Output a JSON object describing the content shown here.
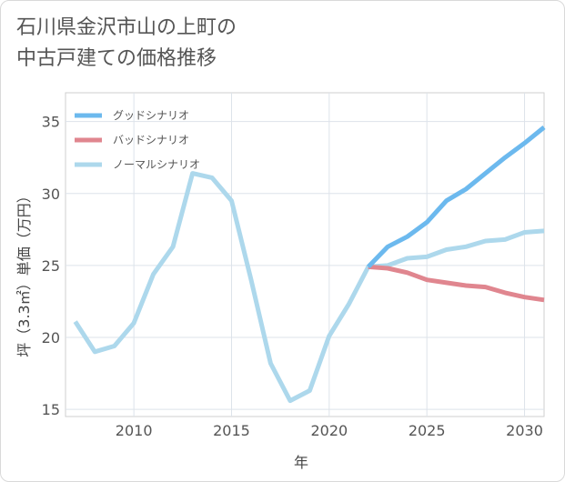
{
  "title": "石川県金沢市山の上町の\n中古戸建ての価格推移",
  "chart_data": {
    "type": "line",
    "xlabel": "年",
    "ylabel": "坪（3.3㎡）単価（万円）",
    "xlim": [
      2006.5,
      2031
    ],
    "ylim": [
      14.5,
      37
    ],
    "xticks": [
      2010,
      2015,
      2020,
      2025,
      2030
    ],
    "yticks": [
      15,
      20,
      25,
      30,
      35
    ],
    "grid": true,
    "legend_position": "top-left",
    "series": [
      {
        "name": "グッドシナリオ",
        "color": "#6cb9ee",
        "x": [
          2022,
          2023,
          2024,
          2025,
          2026,
          2027,
          2028,
          2029,
          2030,
          2031
        ],
        "y": [
          24.9,
          26.3,
          27.0,
          28.0,
          29.5,
          30.3,
          31.4,
          32.5,
          33.5,
          34.6
        ]
      },
      {
        "name": "バッドシナリオ",
        "color": "#e0868f",
        "x": [
          2022,
          2023,
          2024,
          2025,
          2026,
          2027,
          2028,
          2029,
          2030,
          2031
        ],
        "y": [
          24.9,
          24.8,
          24.5,
          24.0,
          23.8,
          23.6,
          23.5,
          23.1,
          22.8,
          22.6
        ]
      },
      {
        "name": "ノーマルシナリオ",
        "color": "#add8ec",
        "x": [
          2007,
          2008,
          2009,
          2010,
          2011,
          2012,
          2013,
          2014,
          2015,
          2016,
          2017,
          2018,
          2019,
          2020,
          2021,
          2022,
          2023,
          2024,
          2025,
          2026,
          2027,
          2028,
          2029,
          2030,
          2031
        ],
        "y": [
          21.1,
          19.0,
          19.4,
          21.0,
          24.4,
          26.3,
          31.4,
          31.1,
          29.5,
          24.0,
          18.2,
          15.6,
          16.3,
          20.1,
          22.3,
          24.9,
          25.0,
          25.5,
          25.6,
          26.1,
          26.3,
          26.7,
          26.8,
          27.3,
          27.4
        ]
      }
    ]
  }
}
